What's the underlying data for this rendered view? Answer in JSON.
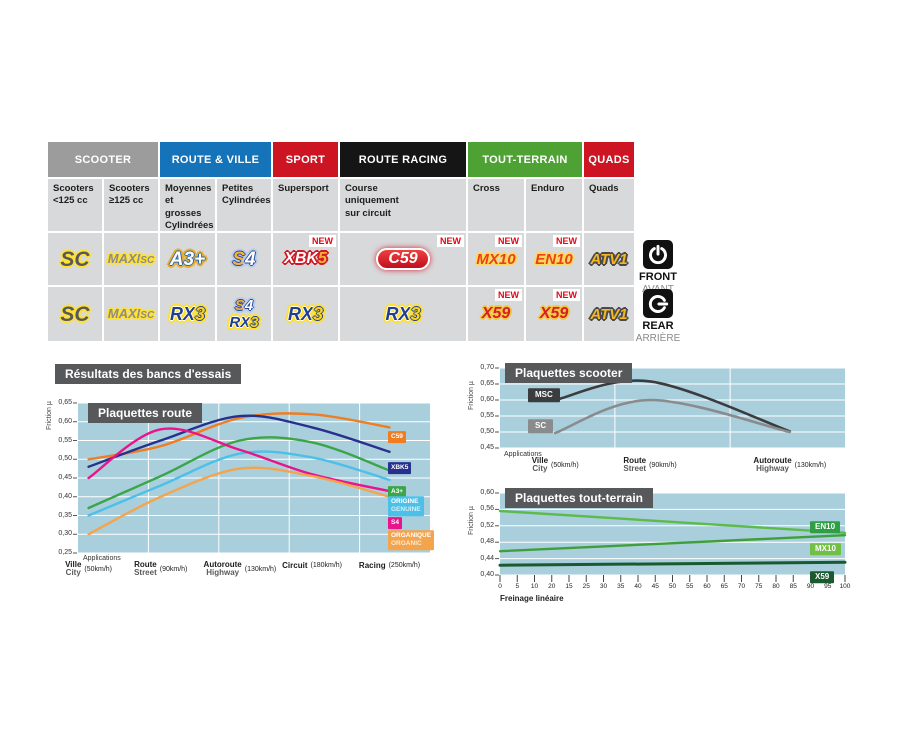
{
  "table": {
    "groups": [
      {
        "id": "scooter",
        "label": "SCOOTER",
        "span": 2,
        "color": "#9b9c9b"
      },
      {
        "id": "route-ville",
        "label": "ROUTE & VILLE",
        "span": 2,
        "color": "#1573b9"
      },
      {
        "id": "sport",
        "label": "SPORT",
        "span": 1,
        "color": "#cc1422"
      },
      {
        "id": "route-racing",
        "label": "ROUTE RACING",
        "span": 1,
        "color": "#151515"
      },
      {
        "id": "tout-terrain",
        "label": "TOUT-TERRAIN",
        "span": 2,
        "color": "#4da233"
      },
      {
        "id": "quads",
        "label": "QUADS",
        "span": 1,
        "color": "#cc1422"
      }
    ],
    "subheaders": [
      "Scooters\n<125 cc",
      "Scooters\n≥125 cc",
      "Moyennes\net grosses\nCylindrées",
      "Petites\nCylindrées",
      "Supersport",
      "Course\nuniquement\nsur circuit",
      "Cross",
      "Enduro",
      "Quads"
    ],
    "new_badge": "NEW",
    "rows": [
      {
        "id": "front",
        "cells": [
          {
            "logos": [
              "SC"
            ]
          },
          {
            "logos": [
              "MAXI SC"
            ]
          },
          {
            "logos": [
              "A3+"
            ]
          },
          {
            "logos": [
              "S4"
            ]
          },
          {
            "logos": [
              "XBK5"
            ],
            "new": true
          },
          {
            "logos": [
              "C59"
            ],
            "new": true
          },
          {
            "logos": [
              "MX10"
            ],
            "new": true
          },
          {
            "logos": [
              "EN10"
            ],
            "new": true
          },
          {
            "logos": [
              "ATV1"
            ]
          }
        ]
      },
      {
        "id": "rear",
        "cells": [
          {
            "logos": [
              "SC"
            ]
          },
          {
            "logos": [
              "MAXI SC"
            ]
          },
          {
            "logos": [
              "RX3"
            ]
          },
          {
            "logos": [
              "S4",
              "RX3"
            ]
          },
          {
            "logos": [
              "RX3"
            ]
          },
          {
            "logos": [
              "RX3"
            ]
          },
          {
            "logos": [
              "X59"
            ],
            "new": true
          },
          {
            "logos": [
              "X59"
            ],
            "new": true
          },
          {
            "logos": [
              "ATV1"
            ]
          }
        ]
      }
    ]
  },
  "position_labels": {
    "front": {
      "en": "FRONT",
      "fr": "AVANT"
    },
    "rear": {
      "en": "REAR",
      "fr": "ARRIÈRE"
    }
  },
  "section_title": "Résultats des bancs d'essais",
  "chart_data": [
    {
      "id": "route",
      "type": "line",
      "title": "Plaquettes route",
      "ylabel": "Friction µ",
      "ylim": [
        0.25,
        0.65
      ],
      "yticks": [
        "0,65",
        "0,60",
        "0,55",
        "0,50",
        "0,45",
        "0,40",
        "0,35",
        "0,30",
        "0,25"
      ],
      "axis_note": "Applications",
      "categories": [
        {
          "main": "Ville",
          "sub": "City",
          "speed": "(50km/h)"
        },
        {
          "main": "Route",
          "sub": "Street",
          "speed": "(90km/h)"
        },
        {
          "main": "Autoroute",
          "sub": "Highway",
          "speed": "(130km/h)"
        },
        {
          "main": "Circuit",
          "speed": "(180km/h)"
        },
        {
          "main": "Racing",
          "speed": "(250km/h)"
        }
      ],
      "series": [
        {
          "name": "C59",
          "color": "#ef7d21",
          "values": [
            0.5,
            0.535,
            0.61,
            0.62,
            0.585
          ],
          "label": [
            "C59"
          ]
        },
        {
          "name": "XBK5",
          "color": "#27318d",
          "values": [
            0.48,
            0.55,
            0.615,
            0.585,
            0.52
          ],
          "label": [
            "XBK5"
          ]
        },
        {
          "name": "A3+",
          "color": "#3ba549",
          "values": [
            0.37,
            0.455,
            0.55,
            0.545,
            0.47
          ],
          "label": [
            "A3+"
          ]
        },
        {
          "name": "ORIGINE",
          "color": "#4cc0e8",
          "values": [
            0.35,
            0.43,
            0.515,
            0.505,
            0.445
          ],
          "label": [
            "ORIGINE",
            "GENUINE"
          ]
        },
        {
          "name": "S4",
          "color": "#e9148c",
          "values": [
            0.45,
            0.58,
            0.525,
            0.46,
            0.415
          ],
          "label": [
            "S4"
          ]
        },
        {
          "name": "ORGANIQUE",
          "color": "#f3a44d",
          "values": [
            0.3,
            0.4,
            0.475,
            0.455,
            0.4
          ],
          "label": [
            "ORGANIQUE",
            "ORGANIC"
          ]
        }
      ]
    },
    {
      "id": "scooter",
      "type": "line",
      "title": "Plaquettes scooter",
      "ylabel": "Friction µ",
      "ylim": [
        0.45,
        0.7
      ],
      "yticks": [
        "0,70",
        "0,65",
        "0,60",
        "0,55",
        "0,50",
        "0,45"
      ],
      "axis_note": "Applications",
      "categories": [
        {
          "main": "Ville",
          "sub": "City",
          "speed": "(50km/h)"
        },
        {
          "main": "Route",
          "sub": "Street",
          "speed": "(90km/h)"
        },
        {
          "main": "Autoroute",
          "sub": "Highway",
          "speed": "(130km/h)"
        }
      ],
      "series": [
        {
          "name": "MSC",
          "color": "#3b3c3e",
          "values": [
            0.6,
            0.658,
            0.502
          ],
          "label": [
            "MSC"
          ]
        },
        {
          "name": "SC",
          "color": "#8a8b8d",
          "values": [
            0.497,
            0.6,
            0.5
          ],
          "label": [
            "SC"
          ]
        }
      ]
    },
    {
      "id": "tout-terrain",
      "type": "line",
      "title": "Plaquettes tout-terrain",
      "ylabel": "Friction µ",
      "xlabel": "Freinage linéaire",
      "ylim": [
        0.4,
        0.6
      ],
      "yticks": [
        "0,60",
        "0,56",
        "0,52",
        "0,48",
        "0,44",
        "0,40"
      ],
      "xticks": [
        "0",
        "5",
        "10",
        "20",
        "15",
        "25",
        "30",
        "35",
        "40",
        "45",
        "50",
        "55",
        "60",
        "65",
        "70",
        "75",
        "80",
        "85",
        "90",
        "95",
        "100"
      ],
      "series": [
        {
          "name": "EN10",
          "color": "#5dbb4b",
          "label_bg": "#2f9f43",
          "values": [
            0.556,
            0.503
          ],
          "label": [
            "EN10"
          ]
        },
        {
          "name": "MX10",
          "color": "#3f9f3b",
          "label_bg": "#72bf45",
          "values": [
            0.458,
            0.497
          ],
          "label": [
            "MX10"
          ]
        },
        {
          "name": "X59",
          "color": "#1a5a2e",
          "label_bg": "#1a5a2e",
          "values": [
            0.424,
            0.431
          ],
          "label": [
            "X59"
          ]
        }
      ]
    }
  ]
}
